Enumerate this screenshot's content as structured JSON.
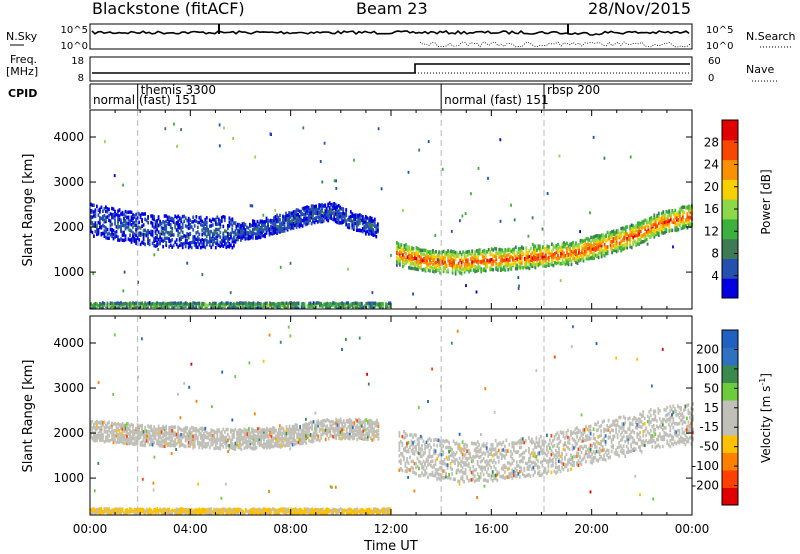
{
  "header": {
    "station": "Blackstone (fitACF)",
    "beam": "Beam 23",
    "date": "28/Nov/2015"
  },
  "noise_panel": {
    "left_label": "N.Sky",
    "right_label": "N.Search",
    "left_ticks": [
      "10^5",
      "10^0"
    ],
    "right_ticks": [
      "10^5",
      "10^0"
    ]
  },
  "freq_panel": {
    "left_label_1": "Freq.",
    "left_label_2": "[MHz]",
    "right_label": "Nave",
    "left_ticks": [
      "18",
      "8"
    ],
    "right_ticks": [
      "60",
      "0"
    ]
  },
  "cpid": {
    "label": "CPID",
    "segments": [
      {
        "text": "normal (fast) 151",
        "hour": 0
      },
      {
        "text": "themis 3300",
        "hour": 1.9
      },
      {
        "text": "normal (fast) 151",
        "hour": 14.0
      },
      {
        "text": "rbsp 200",
        "hour": 18.1
      }
    ]
  },
  "colors": {
    "power_scale": [
      "#0000e0",
      "#2650b0",
      "#3e7b55",
      "#3cb03c",
      "#8cd848",
      "#f8d000",
      "#f89000",
      "#f84800",
      "#e00000"
    ],
    "velocity_scale": [
      "#2060c0",
      "#3070c0",
      "#3a8a50",
      "#6ccc3c",
      "#c0c0b8",
      "#c0c0b8",
      "#ffc000",
      "#ff8000",
      "#ff4000",
      "#e00000"
    ],
    "range_gray": "#c4c4bc"
  },
  "chart_data": [
    {
      "type": "heatmap",
      "panel": "power",
      "xlabel": "",
      "ylabel": "Slant Range [km]",
      "xlim": [
        0,
        24
      ],
      "ylim": [
        180,
        4600
      ],
      "yticks": [
        "1000",
        "2000",
        "3000",
        "4000"
      ],
      "colorbar": {
        "label": "Power [dB]",
        "ticks": [
          "4",
          "8",
          "12",
          "16",
          "20",
          "24",
          "28"
        ],
        "range": [
          0,
          32
        ]
      },
      "bands": [
        {
          "name": "F-region echo",
          "start_h": 0.0,
          "end_h": 5.8,
          "center_km": [
            2150,
            2050,
            1950,
            1900,
            1880,
            1880,
            1880
          ],
          "thickness_km": 700,
          "power_db": 5
        },
        {
          "name": "F-region echo",
          "start_h": 5.8,
          "end_h": 11.5,
          "center_km": [
            1880,
            1950,
            2100,
            2250,
            2350,
            2100,
            1950
          ],
          "thickness_km": 400,
          "power_db": 5
        },
        {
          "name": "F-region echo",
          "start_h": 12.2,
          "end_h": 24.0,
          "center_km": [
            1400,
            1250,
            1200,
            1250,
            1300,
            1350,
            1420,
            1600,
            1800,
            2100,
            2250
          ],
          "thickness_km": 500,
          "power_db": 24
        },
        {
          "name": "ground scatter",
          "start_h": 0.0,
          "end_h": 12.0,
          "center_km": [
            260,
            260,
            260,
            260,
            260
          ],
          "thickness_km": 100,
          "power_db": 14
        }
      ]
    },
    {
      "type": "heatmap",
      "panel": "velocity",
      "xlabel": "Time UT",
      "ylabel": "Slant Range [km]",
      "xlim": [
        0,
        24
      ],
      "ylim": [
        180,
        4600
      ],
      "xticks": [
        "00:00",
        "04:00",
        "08:00",
        "12:00",
        "16:00",
        "20:00",
        "00:00"
      ],
      "yticks": [
        "1000",
        "2000",
        "3000",
        "4000"
      ],
      "colorbar": {
        "label": "Velocity [m s^-1]",
        "ticks": [
          "200",
          "100",
          "50",
          "15",
          "-15",
          "-50",
          "-100",
          "-200"
        ],
        "range": [
          -250,
          250
        ]
      },
      "bands": [
        {
          "name": "F-region echo",
          "start_h": 0.0,
          "end_h": 11.5,
          "center_km": [
            2050,
            1950,
            1900,
            1850,
            1900,
            2100,
            2050
          ],
          "thickness_km": 450,
          "velocity_mps": 0
        },
        {
          "name": "F-region echo",
          "start_h": 12.3,
          "end_h": 24.0,
          "center_km": [
            1600,
            1400,
            1350,
            1400,
            1500,
            1700,
            1900,
            2100,
            2200
          ],
          "thickness_km": 900,
          "velocity_mps": 0
        },
        {
          "name": "ground scatter",
          "start_h": 0.0,
          "end_h": 12.0,
          "center_km": [
            260,
            260,
            260,
            260,
            260
          ],
          "thickness_km": 100,
          "velocity_mps": -60
        }
      ]
    }
  ]
}
